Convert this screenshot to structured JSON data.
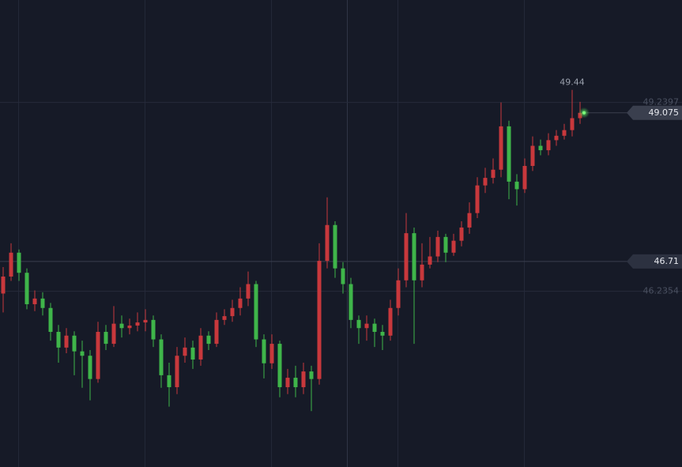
{
  "chart_data": {
    "type": "candlestick",
    "open": [
      46.2,
      46.47,
      46.85,
      46.53,
      46.03,
      46.12,
      45.97,
      45.59,
      45.34,
      45.53,
      45.28,
      45.21,
      44.84,
      45.59,
      45.4,
      45.72,
      45.65,
      45.69,
      45.74,
      45.78,
      45.47,
      44.9,
      44.71,
      45.21,
      45.34,
      45.15,
      45.53,
      45.4,
      45.78,
      45.84,
      45.97,
      46.12,
      46.35,
      45.47,
      45.09,
      45.4,
      44.71,
      44.86,
      44.71,
      44.96,
      44.84,
      46.72,
      47.29,
      46.6,
      46.35,
      45.78,
      45.65,
      45.72,
      45.59,
      45.53,
      45.97,
      46.41,
      47.16,
      46.41,
      46.66,
      46.79,
      47.1,
      46.85,
      47.04,
      47.25,
      47.48,
      47.92,
      48.04,
      48.17,
      48.86,
      47.98,
      47.86,
      48.23,
      48.55,
      48.48,
      48.64,
      48.71,
      48.8,
      48.99
    ],
    "high": [
      46.62,
      47.0,
      46.9,
      46.6,
      46.25,
      46.22,
      46.05,
      45.7,
      45.65,
      45.6,
      45.45,
      45.3,
      45.75,
      45.7,
      46.0,
      45.85,
      45.8,
      45.9,
      45.95,
      45.85,
      45.55,
      45.1,
      45.35,
      45.5,
      45.45,
      45.65,
      45.6,
      45.9,
      45.95,
      46.1,
      46.3,
      46.55,
      46.4,
      45.55,
      45.55,
      45.45,
      45.0,
      45.05,
      45.1,
      45.05,
      47.0,
      47.73,
      47.35,
      46.7,
      46.45,
      45.85,
      45.85,
      45.8,
      45.7,
      46.1,
      46.6,
      47.48,
      47.25,
      47.0,
      47.1,
      47.2,
      47.15,
      47.15,
      47.35,
      47.65,
      48.05,
      48.2,
      48.35,
      49.24,
      48.95,
      48.1,
      48.35,
      48.7,
      48.65,
      48.75,
      48.8,
      48.9,
      49.44,
      49.25
    ],
    "low": [
      45.9,
      46.4,
      46.4,
      45.95,
      45.92,
      45.85,
      45.45,
      45.1,
      45.25,
      44.9,
      44.7,
      44.5,
      44.78,
      45.3,
      45.35,
      45.5,
      45.55,
      45.6,
      45.6,
      45.35,
      44.7,
      44.4,
      44.6,
      45.1,
      45.0,
      45.05,
      45.3,
      45.35,
      45.7,
      45.75,
      45.85,
      46.0,
      45.35,
      44.85,
      45.0,
      44.55,
      44.6,
      44.55,
      44.6,
      44.33,
      44.75,
      46.6,
      46.45,
      46.2,
      45.65,
      45.4,
      45.45,
      45.35,
      45.3,
      45.45,
      45.85,
      46.3,
      45.4,
      46.3,
      46.6,
      46.7,
      46.7,
      46.8,
      46.95,
      47.15,
      47.4,
      47.8,
      47.95,
      48.05,
      47.7,
      47.6,
      47.8,
      48.15,
      48.4,
      48.4,
      48.55,
      48.65,
      48.7,
      48.9
    ],
    "close": [
      46.47,
      46.85,
      46.53,
      46.03,
      46.12,
      45.97,
      45.59,
      45.34,
      45.53,
      45.28,
      45.21,
      44.84,
      45.59,
      45.4,
      45.72,
      45.65,
      45.69,
      45.74,
      45.78,
      45.47,
      44.9,
      44.71,
      45.21,
      45.34,
      45.15,
      45.53,
      45.4,
      45.78,
      45.84,
      45.97,
      46.12,
      46.35,
      45.47,
      45.09,
      45.4,
      44.71,
      44.86,
      44.71,
      44.96,
      44.84,
      46.72,
      47.29,
      46.6,
      46.35,
      45.78,
      45.65,
      45.72,
      45.59,
      45.53,
      45.97,
      46.41,
      47.16,
      46.41,
      46.66,
      46.79,
      47.1,
      46.85,
      47.04,
      47.25,
      47.48,
      47.92,
      48.04,
      48.17,
      48.86,
      47.98,
      47.86,
      48.23,
      48.55,
      48.48,
      48.64,
      48.71,
      48.8,
      48.99,
      49.075
    ],
    "ylim": [
      43.44,
      50.87
    ],
    "up_color": "#c8383c",
    "down_color": "#3fb54a",
    "high_label": 49.44,
    "last_price": 49.075,
    "price_lines": [
      46.71
    ],
    "range_lines": [
      49.2397,
      46.2354
    ]
  }
}
